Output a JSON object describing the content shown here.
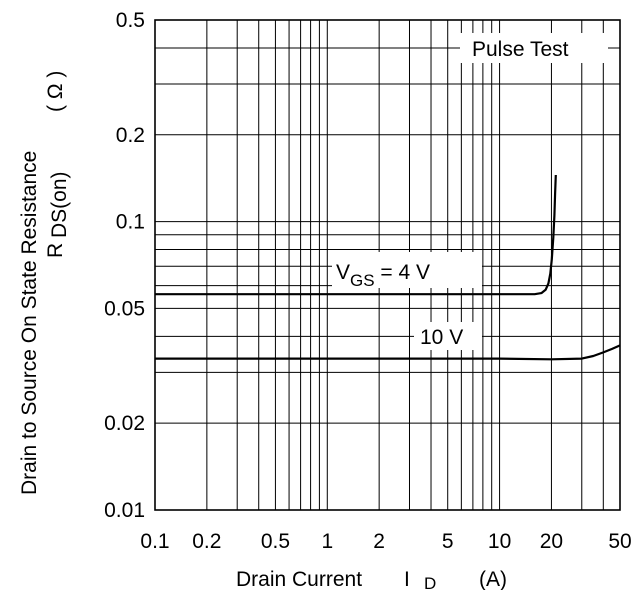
{
  "chart_data": {
    "type": "line",
    "xscale": "log",
    "yscale": "log",
    "xlim": [
      0.1,
      50
    ],
    "ylim": [
      0.01,
      0.5
    ],
    "grid": true,
    "xlabel": {
      "main": "Drain Current",
      "symbol": "I",
      "subscript": "D",
      "unit": "(A)"
    },
    "ylabel": {
      "main": "Drain to Source On State Resistance",
      "symbol": "R",
      "subscript": "DS(on)",
      "unit": "( Ω )"
    },
    "x_tick_labels": [
      "0.1",
      "0.2",
      "0.5",
      "1",
      "2",
      "5",
      "10",
      "20",
      "50"
    ],
    "y_tick_labels": [
      "0.01",
      "0.02",
      "0.05",
      "0.1",
      "0.2",
      "0.5"
    ],
    "annotations": {
      "pulse_test": "Pulse Test",
      "vgs4": {
        "prefix": "V",
        "subscript": "GS",
        "suffix": " = 4 V"
      },
      "vgs10": "10 V"
    },
    "series": [
      {
        "x": [
          0.1,
          1,
          10,
          16,
          17.5,
          18.5,
          19.2,
          19.7,
          20.1,
          20.5,
          20.8,
          21.0,
          21.2
        ],
        "y": [
          0.056,
          0.056,
          0.056,
          0.056,
          0.0565,
          0.058,
          0.061,
          0.066,
          0.074,
          0.088,
          0.105,
          0.125,
          0.145
        ]
      },
      {
        "x": [
          0.1,
          1,
          10,
          20,
          30,
          35,
          40,
          45,
          50
        ],
        "y": [
          0.0335,
          0.0335,
          0.0335,
          0.0333,
          0.0335,
          0.0342,
          0.0352,
          0.0362,
          0.0372
        ]
      }
    ]
  }
}
